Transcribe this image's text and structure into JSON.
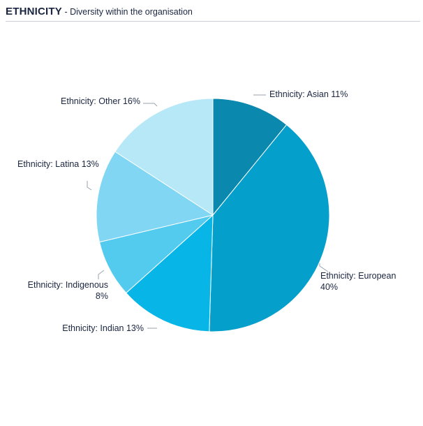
{
  "header": {
    "title": "ETHNICITY",
    "subtitle": " - Diversity within the organisation"
  },
  "chart_data": {
    "type": "pie",
    "title": "ETHNICITY",
    "subtitle": "Diversity within the organisation",
    "slices": [
      {
        "label": "Ethnicity: Asian",
        "value": 11,
        "label_lines": [
          "Ethnicity: Asian 11%"
        ],
        "color": "#0a88ad"
      },
      {
        "label": "Ethnicity: European",
        "value": 40,
        "label_lines": [
          "Ethnicity: European",
          "40%"
        ],
        "color": "#059fcb"
      },
      {
        "label": "Ethnicity: Indian",
        "value": 13,
        "label_lines": [
          "Ethnicity: Indian 13%"
        ],
        "color": "#07b6e7"
      },
      {
        "label": "Ethnicity: Indigenous",
        "value": 8,
        "label_lines": [
          "Ethnicity: Indigenous",
          "8%"
        ],
        "color": "#52cbee"
      },
      {
        "label": "Ethnicity: Latina",
        "value": 13,
        "label_lines": [
          "Ethnicity: Latina 13%"
        ],
        "color": "#80d6f3"
      },
      {
        "label": "Ethnicity: Other",
        "value": 16,
        "label_lines": [
          "Ethnicity: Other 16%"
        ],
        "color": "#b7e8f7"
      }
    ]
  }
}
